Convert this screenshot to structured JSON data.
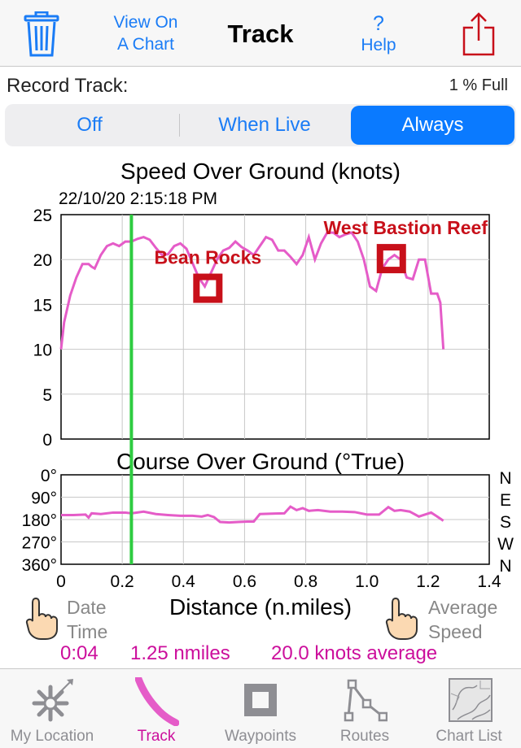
{
  "navbar": {
    "chart_btn_line1": "View On",
    "chart_btn_line2": "A Chart",
    "title": "Track",
    "help_symbol": "?",
    "help_label": "Help",
    "trash_icon": "trash-icon",
    "share_icon": "share-icon"
  },
  "record": {
    "label": "Record Track:",
    "full": "1 % Full",
    "options": [
      "Off",
      "When Live",
      "Always"
    ],
    "selected": "Always"
  },
  "chart_data": [
    {
      "type": "line",
      "title": "Speed Over Ground (knots)",
      "timestamp": "22/10/20  2:15:18 PM",
      "xlim": [
        0,
        1.4
      ],
      "ylim": [
        0,
        25
      ],
      "yticks": [
        "0",
        "5",
        "10",
        "15",
        "20",
        "25"
      ],
      "x": [
        0.0,
        0.01,
        0.03,
        0.05,
        0.07,
        0.09,
        0.1,
        0.11,
        0.13,
        0.15,
        0.17,
        0.19,
        0.21,
        0.23,
        0.25,
        0.27,
        0.29,
        0.31,
        0.33,
        0.35,
        0.37,
        0.39,
        0.41,
        0.43,
        0.45,
        0.47,
        0.49,
        0.51,
        0.53,
        0.55,
        0.57,
        0.59,
        0.61,
        0.63,
        0.65,
        0.67,
        0.69,
        0.71,
        0.73,
        0.75,
        0.77,
        0.79,
        0.81,
        0.83,
        0.85,
        0.87,
        0.89,
        0.91,
        0.93,
        0.95,
        0.97,
        0.99,
        1.01,
        1.03,
        1.05,
        1.07,
        1.09,
        1.11,
        1.13,
        1.15,
        1.17,
        1.19,
        1.21,
        1.23,
        1.24,
        1.25
      ],
      "y": [
        10,
        13,
        16,
        18,
        19.5,
        19.5,
        19.2,
        19,
        20.5,
        21.5,
        21.8,
        21.5,
        22,
        22,
        22.3,
        22.5,
        22.2,
        21.3,
        20.5,
        20.6,
        21.5,
        21.8,
        21.2,
        19.6,
        18,
        17,
        18.5,
        20,
        21,
        21.3,
        22,
        21.4,
        21,
        20.5,
        21.5,
        22.5,
        22.2,
        21,
        21,
        20.3,
        19.5,
        20.5,
        22.5,
        20,
        21.8,
        23,
        23,
        22.5,
        22.8,
        23,
        22,
        20,
        17,
        16.5,
        19,
        20,
        20.5,
        20,
        18,
        17.8,
        20,
        20,
        16.2,
        16.2,
        15.2,
        10
      ],
      "series": [
        {
          "name": "",
          "color": "#e55cc8"
        }
      ],
      "marker_x": 0.23,
      "annotations": [
        {
          "label": "Bean Rocks",
          "x": 0.48,
          "y": 16.8
        },
        {
          "label": "West Bastion Reef",
          "x": 1.08,
          "y": 20.1
        }
      ]
    },
    {
      "type": "line",
      "title": "Course Over Ground (°True)",
      "xlim": [
        0,
        1.4
      ],
      "ylim": [
        0,
        360
      ],
      "yticks": [
        "0°",
        "90°",
        "180°",
        "270°",
        "360°"
      ],
      "compass": [
        "N",
        "E",
        "S",
        "W",
        "N"
      ],
      "xlabel": "Distance (n.miles)",
      "xticks": [
        "0",
        "0.2",
        "0.4",
        "0.6",
        "0.8",
        "1.0",
        "1.2",
        "1.4"
      ],
      "x": [
        0.0,
        0.04,
        0.08,
        0.09,
        0.1,
        0.13,
        0.17,
        0.21,
        0.23,
        0.27,
        0.31,
        0.35,
        0.39,
        0.43,
        0.46,
        0.48,
        0.5,
        0.52,
        0.55,
        0.58,
        0.61,
        0.63,
        0.65,
        0.7,
        0.73,
        0.75,
        0.77,
        0.79,
        0.81,
        0.84,
        0.88,
        0.92,
        0.96,
        1.0,
        1.04,
        1.07,
        1.09,
        1.11,
        1.14,
        1.17,
        1.21,
        1.23,
        1.25
      ],
      "y": [
        162,
        162,
        160,
        172,
        155,
        158,
        152,
        152,
        155,
        148,
        158,
        162,
        165,
        165,
        168,
        162,
        170,
        190,
        192,
        190,
        188,
        188,
        158,
        156,
        155,
        128,
        142,
        134,
        145,
        142,
        148,
        148,
        150,
        160,
        160,
        130,
        145,
        142,
        148,
        168,
        152,
        168,
        185
      ],
      "series": [
        {
          "name": "",
          "color": "#e55cc8"
        }
      ]
    }
  ],
  "footer": {
    "left_hint_line1": "Date",
    "left_hint_line2": "Time",
    "right_hint_line1": "Average",
    "right_hint_line2": "Speed",
    "time": "0:04",
    "distance": "1.25 nmiles",
    "average": "20.0 knots average"
  },
  "tabs": [
    {
      "label": "My Location",
      "icon": "location-icon"
    },
    {
      "label": "Track",
      "icon": "track-icon"
    },
    {
      "label": "Waypoints",
      "icon": "waypoints-icon"
    },
    {
      "label": "Routes",
      "icon": "routes-icon"
    },
    {
      "label": "Chart List",
      "icon": "chart-list-icon"
    }
  ],
  "active_tab": "Track",
  "colors": {
    "accent": "#1a7cf6",
    "track": "#e55cc8",
    "marker": "#2ecc40",
    "annotation": "#c8101a",
    "stats": "#cc0f9c"
  }
}
